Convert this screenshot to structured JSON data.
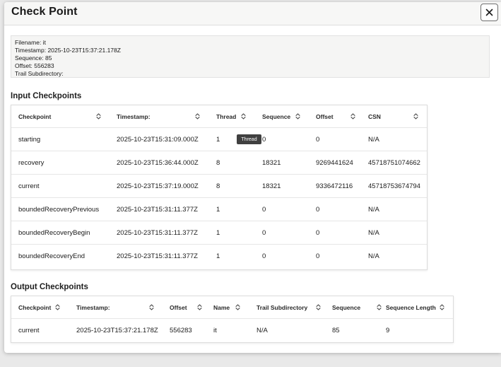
{
  "dialog": {
    "title": "Check Point",
    "close_icon": "close-icon"
  },
  "summary": {
    "filename": "Filename: it",
    "timestamp": "Timestamp: 2025-10-23T15:37:21.178Z",
    "sequence": "Sequence: 85",
    "offset": "Offset: 556283",
    "trail_subdirectory": "Trail Subdirectory:"
  },
  "input": {
    "title": "Input Checkpoints",
    "headers": [
      "Checkpoint",
      "Timestamp:",
      "Thread",
      "Sequence",
      "Offset",
      "CSN"
    ],
    "rows": [
      [
        "starting",
        "2025-10-23T15:31:09.000Z",
        "1",
        "0",
        "0",
        "N/A"
      ],
      [
        "recovery",
        "2025-10-23T15:36:44.000Z",
        "8",
        "18321",
        "9269441624",
        "45718751074662"
      ],
      [
        "current",
        "2025-10-23T15:37:19.000Z",
        "8",
        "18321",
        "9336472116",
        "45718753674794"
      ],
      [
        "boundedRecoveryPrevious",
        "2025-10-23T15:31:11.377Z",
        "1",
        "0",
        "0",
        "N/A"
      ],
      [
        "boundedRecoveryBegin",
        "2025-10-23T15:31:11.377Z",
        "1",
        "0",
        "0",
        "N/A"
      ],
      [
        "boundedRecoveryEnd",
        "2025-10-23T15:31:11.377Z",
        "1",
        "0",
        "0",
        "N/A"
      ]
    ],
    "tooltip": "Thread"
  },
  "output": {
    "title": "Output Checkpoints",
    "headers": [
      "Checkpoint",
      "Timestamp:",
      "Offset",
      "Name",
      "Trail Subdirectory",
      "Sequence",
      "Sequence Length"
    ],
    "rows": [
      [
        "current",
        "2025-10-23T15:37:21.178Z",
        "556283",
        "it",
        "N/A",
        "85",
        "9"
      ]
    ]
  },
  "sort_icon": "sort-updown-icon",
  "colors": {
    "header_bg": "#f7f7f6",
    "summary_bg": "#f5f5f4",
    "tooltip_bg": "#404040",
    "page_bg": "#e9e9e9"
  }
}
